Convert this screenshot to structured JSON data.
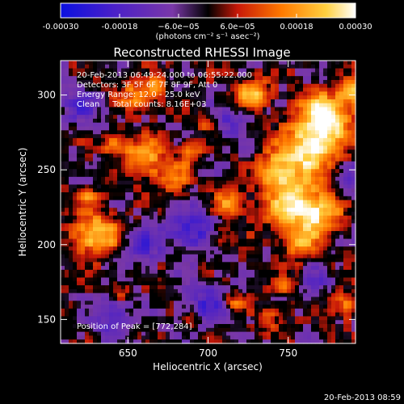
{
  "chart_data": {
    "type": "heatmap",
    "title": "Reconstructed RHESSI Image",
    "xlabel": "Heliocentric X (arcsec)",
    "ylabel": "Heliocentric Y (arcsec)",
    "xlim": [
      608,
      792
    ],
    "ylim": [
      134,
      323
    ],
    "xticks": [
      650,
      700,
      750
    ],
    "yticks": [
      150,
      200,
      250,
      300
    ],
    "colorbar": {
      "min": -0.0003,
      "max": 0.0003,
      "ticks": [
        -0.0003,
        -0.00018,
        -6e-05,
        6e-05,
        0.00018,
        0.0003
      ],
      "tick_labels": [
        "-0.00030",
        "-0.00018",
        "−6.0e−05",
        "6.0e−05",
        "0.00018",
        "0.00030"
      ],
      "unit": "(photons cm⁻² s⁻¹ asec⁻²)",
      "colors": [
        "#0b10e0",
        "#4a20c8",
        "#7a38a8",
        "#000000",
        "#c81808",
        "#ff7a00",
        "#ffd040",
        "#ffffff"
      ]
    },
    "annotations": [
      "20-Feb-2013 06:49:24.000 to 06:55:22.000",
      "Detectors: 3F 5F 6F 7F 8F 9F, Att 0",
      "Energy Range: 12.0 - 25.0 keV",
      "Clean     Total counts: 8.16E+03"
    ],
    "peak_label": "Position of Peak = [772,284]",
    "blobs": [
      {
        "x": 773,
        "y": 285,
        "sigma": 11,
        "amp": 1.15
      },
      {
        "x": 762,
        "y": 262,
        "sigma": 12,
        "amp": 0.95
      },
      {
        "x": 752,
        "y": 228,
        "sigma": 12,
        "amp": 0.9
      },
      {
        "x": 770,
        "y": 220,
        "sigma": 9,
        "amp": 0.75
      },
      {
        "x": 742,
        "y": 250,
        "sigma": 8,
        "amp": 0.7
      },
      {
        "x": 728,
        "y": 302,
        "sigma": 7,
        "amp": 0.8
      },
      {
        "x": 630,
        "y": 207,
        "sigma": 10,
        "amp": 0.9
      },
      {
        "x": 660,
        "y": 258,
        "sigma": 9,
        "amp": 0.75
      },
      {
        "x": 678,
        "y": 246,
        "sigma": 7,
        "amp": 0.55
      },
      {
        "x": 641,
        "y": 268,
        "sigma": 5,
        "amp": 0.55
      },
      {
        "x": 655,
        "y": 300,
        "sigma": 7,
        "amp": 0.6
      },
      {
        "x": 668,
        "y": 305,
        "sigma": 5,
        "amp": 0.5
      },
      {
        "x": 690,
        "y": 262,
        "sigma": 5,
        "amp": 0.5
      },
      {
        "x": 712,
        "y": 228,
        "sigma": 7,
        "amp": 0.55
      },
      {
        "x": 708,
        "y": 205,
        "sigma": 5,
        "amp": 0.45
      },
      {
        "x": 790,
        "y": 302,
        "sigma": 6,
        "amp": 0.7
      },
      {
        "x": 758,
        "y": 200,
        "sigma": 8,
        "amp": 0.6
      },
      {
        "x": 785,
        "y": 160,
        "sigma": 6,
        "amp": 0.6
      },
      {
        "x": 716,
        "y": 162,
        "sigma": 5,
        "amp": 0.55
      },
      {
        "x": 748,
        "y": 172,
        "sigma": 5,
        "amp": 0.5
      },
      {
        "x": 738,
        "y": 150,
        "sigma": 5,
        "amp": 0.45
      },
      {
        "x": 690,
        "y": 150,
        "sigma": 4,
        "amp": 0.4
      },
      {
        "x": 625,
        "y": 232,
        "sigma": 4,
        "amp": 0.45
      },
      {
        "x": 700,
        "y": 280,
        "sigma": 4,
        "amp": 0.35
      },
      {
        "x": 645,
        "y": 170,
        "sigma": 4,
        "amp": 0.35
      }
    ],
    "negative_wells": [
      {
        "x": 690,
        "y": 210,
        "sigma": 10,
        "amp": 0.7
      },
      {
        "x": 660,
        "y": 200,
        "sigma": 8,
        "amp": 0.55
      },
      {
        "x": 700,
        "y": 160,
        "sigma": 10,
        "amp": 0.6
      },
      {
        "x": 640,
        "y": 150,
        "sigma": 9,
        "amp": 0.55
      },
      {
        "x": 712,
        "y": 282,
        "sigma": 7,
        "amp": 0.5
      },
      {
        "x": 620,
        "y": 292,
        "sigma": 8,
        "amp": 0.5
      },
      {
        "x": 790,
        "y": 244,
        "sigma": 6,
        "amp": 0.45
      },
      {
        "x": 766,
        "y": 175,
        "sigma": 7,
        "amp": 0.45
      }
    ]
  },
  "footer": {
    "timestamp": "20-Feb-2013 08:59"
  }
}
